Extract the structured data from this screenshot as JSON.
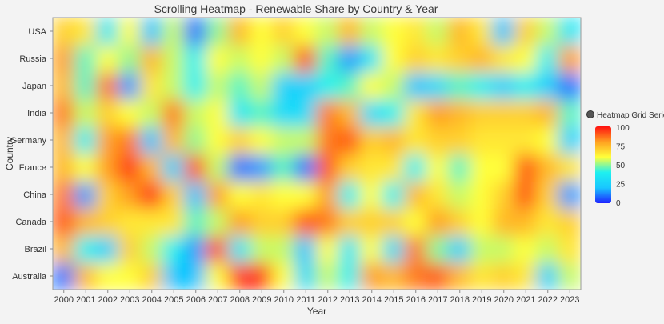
{
  "chart_data": {
    "type": "heatmap",
    "title": "Scrolling Heatmap - Renewable Share by Country & Year",
    "xlabel": "Year",
    "ylabel": "Country",
    "x_categories": [
      "2000",
      "2001",
      "2002",
      "2003",
      "2004",
      "2005",
      "2006",
      "2007",
      "2008",
      "2009",
      "2010",
      "2011",
      "2012",
      "2013",
      "2014",
      "2015",
      "2016",
      "2017",
      "2018",
      "2019",
      "2020",
      "2021",
      "2022",
      "2023"
    ],
    "y_categories": [
      "Australia",
      "Brazil",
      "Canada",
      "China",
      "France",
      "Germany",
      "India",
      "Japan",
      "Russia",
      "USA"
    ],
    "values": [
      [
        10,
        75,
        60,
        60,
        70,
        20,
        20,
        60,
        95,
        95,
        60,
        30,
        55,
        40,
        80,
        75,
        85,
        90,
        75,
        65,
        70,
        65,
        25,
        55
      ],
      [
        75,
        40,
        25,
        70,
        55,
        40,
        15,
        90,
        35,
        55,
        55,
        20,
        60,
        35,
        60,
        30,
        85,
        50,
        25,
        55,
        55,
        60,
        55,
        65
      ],
      [
        90,
        75,
        70,
        65,
        65,
        65,
        45,
        55,
        80,
        70,
        70,
        90,
        85,
        70,
        70,
        70,
        60,
        80,
        70,
        60,
        75,
        75,
        65,
        70
      ],
      [
        85,
        15,
        70,
        80,
        95,
        70,
        20,
        80,
        60,
        65,
        60,
        60,
        80,
        40,
        60,
        40,
        75,
        65,
        55,
        60,
        70,
        90,
        70,
        15
      ],
      [
        75,
        60,
        80,
        95,
        75,
        25,
        90,
        55,
        10,
        15,
        45,
        10,
        90,
        70,
        65,
        65,
        40,
        60,
        45,
        60,
        60,
        90,
        75,
        65
      ],
      [
        75,
        40,
        80,
        85,
        20,
        75,
        50,
        60,
        70,
        60,
        55,
        55,
        85,
        90,
        70,
        75,
        65,
        70,
        70,
        65,
        65,
        65,
        60,
        25
      ],
      [
        85,
        55,
        70,
        60,
        55,
        85,
        55,
        60,
        35,
        45,
        30,
        30,
        85,
        75,
        30,
        40,
        65,
        80,
        75,
        70,
        70,
        70,
        75,
        45
      ],
      [
        75,
        45,
        85,
        15,
        65,
        55,
        40,
        55,
        45,
        55,
        25,
        25,
        40,
        45,
        60,
        55,
        20,
        30,
        45,
        40,
        25,
        40,
        25,
        10
      ],
      [
        80,
        45,
        60,
        50,
        75,
        55,
        40,
        60,
        55,
        60,
        55,
        90,
        45,
        15,
        35,
        60,
        70,
        65,
        70,
        75,
        65,
        60,
        40,
        80
      ],
      [
        70,
        65,
        35,
        60,
        20,
        55,
        10,
        50,
        75,
        60,
        70,
        60,
        55,
        75,
        55,
        60,
        65,
        55,
        75,
        65,
        20,
        70,
        55,
        35
      ]
    ],
    "legend": {
      "series_name": "Heatmap Grid Series",
      "ticks": [
        "100",
        "75",
        "50",
        "25",
        "0"
      ],
      "min": 0,
      "max": 100,
      "colors": [
        "#1e22ff",
        "#19c6ff",
        "#1ef0f0",
        "#ffff3a",
        "#ffa020",
        "#ff1010"
      ]
    }
  }
}
